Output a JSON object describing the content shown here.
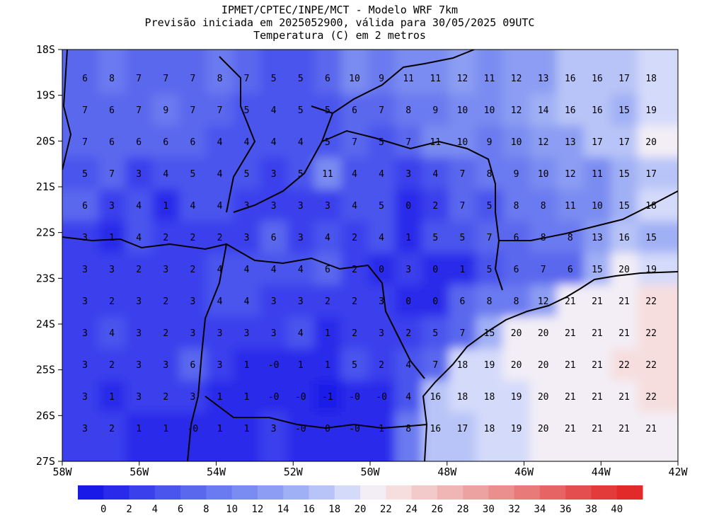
{
  "header": {
    "title": "IPMET/CPTEC/INPE/MCT - Modelo WRF 7km",
    "subtitle": "Previsão iniciada em 2025052900, válida para 30/05/2025 09UTC",
    "variable": "Temperatura (C) em 2 metros"
  },
  "map": {
    "lat_labels": [
      "18S",
      "19S",
      "20S",
      "21S",
      "22S",
      "23S",
      "24S",
      "25S",
      "26S",
      "27S"
    ],
    "lon_labels": [
      "58W",
      "56W",
      "54W",
      "52W",
      "50W",
      "48W",
      "46W",
      "44W",
      "42W"
    ],
    "grid_values": [
      [
        6,
        8,
        7,
        7,
        7,
        8,
        7,
        5,
        5,
        6,
        10,
        9,
        11,
        11,
        12,
        11,
        12,
        13,
        16,
        16,
        17,
        18
      ],
      [
        7,
        6,
        7,
        9,
        7,
        7,
        5,
        4,
        5,
        5,
        6,
        7,
        8,
        9,
        10,
        10,
        12,
        14,
        16,
        16,
        15,
        19
      ],
      [
        7,
        6,
        6,
        6,
        6,
        4,
        4,
        4,
        4,
        5,
        7,
        5,
        7,
        11,
        10,
        9,
        10,
        12,
        13,
        17,
        17,
        20
      ],
      [
        5,
        7,
        3,
        4,
        5,
        4,
        5,
        3,
        5,
        11,
        4,
        4,
        3,
        4,
        7,
        8,
        9,
        10,
        12,
        11,
        15,
        17
      ],
      [
        6,
        3,
        4,
        1,
        4,
        4,
        3,
        3,
        3,
        3,
        4,
        5,
        0,
        2,
        7,
        5,
        8,
        8,
        11,
        10,
        15,
        18
      ],
      [
        3,
        1,
        4,
        2,
        2,
        2,
        3,
        6,
        3,
        4,
        2,
        4,
        1,
        5,
        5,
        7,
        6,
        8,
        8,
        13,
        16,
        15
      ],
      [
        3,
        3,
        2,
        3,
        2,
        4,
        4,
        4,
        4,
        6,
        2,
        0,
        3,
        0,
        1,
        5,
        6,
        7,
        6,
        15,
        20,
        19
      ],
      [
        3,
        2,
        3,
        2,
        3,
        4,
        4,
        3,
        3,
        2,
        2,
        3,
        0,
        0,
        6,
        8,
        8,
        12,
        21,
        21,
        21,
        22
      ],
      [
        3,
        4,
        3,
        2,
        3,
        3,
        3,
        3,
        4,
        1,
        2,
        3,
        2,
        5,
        7,
        15,
        20,
        20,
        21,
        21,
        21,
        22
      ],
      [
        3,
        2,
        3,
        3,
        6,
        3,
        1,
        "-0",
        1,
        1,
        5,
        2,
        4,
        7,
        18,
        19,
        20,
        20,
        21,
        21,
        22,
        22
      ],
      [
        3,
        1,
        3,
        2,
        3,
        1,
        1,
        "-0",
        "-0",
        -1,
        "-0",
        "-0",
        4,
        16,
        18,
        18,
        19,
        20,
        21,
        21,
        21,
        22
      ],
      [
        3,
        2,
        1,
        1,
        "-0",
        1,
        1,
        3,
        "-0",
        0,
        "-0",
        1,
        8,
        16,
        17,
        18,
        19,
        20,
        21,
        21,
        21,
        21
      ]
    ]
  },
  "colorbar": {
    "labels": [
      0,
      2,
      4,
      6,
      8,
      10,
      12,
      14,
      16,
      18,
      20,
      22,
      24,
      26,
      28,
      30,
      32,
      34,
      36,
      38,
      40
    ],
    "colors": [
      "#1a1ae8",
      "#2a2aea",
      "#3a40ec",
      "#4a55ed",
      "#5a68ee",
      "#6a7af0",
      "#7a8cf1",
      "#8c9df3",
      "#a0b0f5",
      "#b8c4f7",
      "#d4dafa",
      "#f3eef6",
      "#f6dede",
      "#f3caca",
      "#f0b6b6",
      "#eda2a2",
      "#ea8e8e",
      "#e87a7a",
      "#e66464",
      "#e44e4e",
      "#e33a3a",
      "#e22a2a"
    ]
  }
}
